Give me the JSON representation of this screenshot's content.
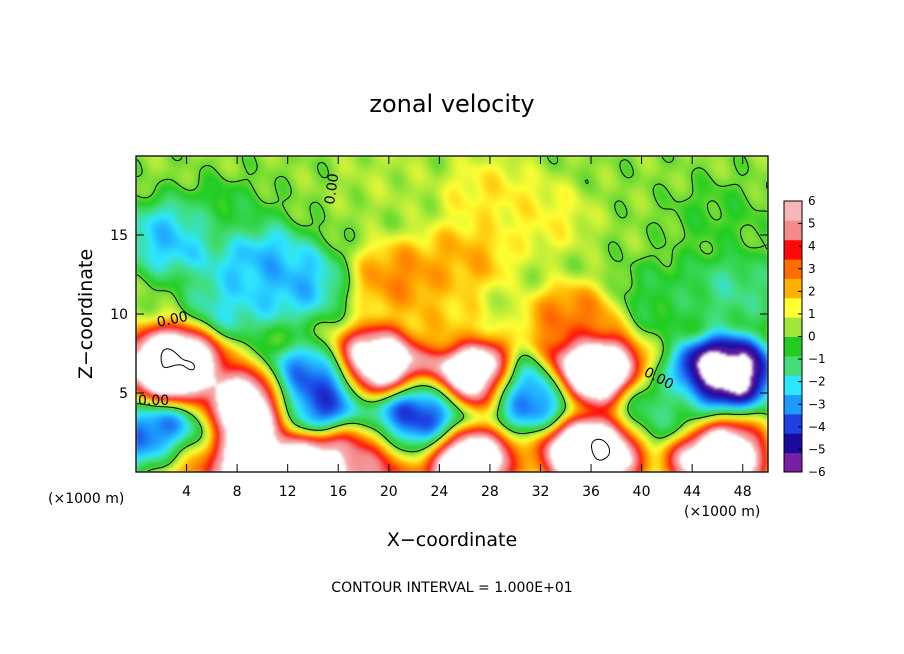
{
  "chart_data": {
    "type": "heatmap",
    "title": "zonal velocity",
    "xlabel": "X−coordinate",
    "ylabel": "Z−coordinate",
    "x_unit_left": "(×1000 m)",
    "x_unit_right": "(×1000 m)",
    "footer": "CONTOUR INTERVAL = 1.000E+01",
    "xlim": [
      0,
      50
    ],
    "ylim": [
      0,
      20
    ],
    "x_ticks": [
      4,
      8,
      12,
      16,
      20,
      24,
      28,
      32,
      36,
      40,
      44,
      48
    ],
    "x_tick_labels": [
      "4",
      "8",
      "12",
      "16",
      "20",
      "24",
      "28",
      "32",
      "36",
      "40",
      "44",
      "48"
    ],
    "y_ticks": [
      5,
      10,
      15
    ],
    "y_tick_labels": [
      "5",
      "10",
      "15"
    ],
    "colorbar": {
      "min": -6,
      "max": 6,
      "ticks": [
        6,
        5,
        4,
        3,
        2,
        1,
        0,
        -1,
        -2,
        -3,
        -4,
        -5,
        -6
      ],
      "tick_labels": [
        "6",
        "5",
        "4",
        "3",
        "2",
        "1",
        "0",
        "−1",
        "−2",
        "−3",
        "−4",
        "−5",
        "−6"
      ],
      "colors": [
        "#7b1fa2",
        "#1a0a9e",
        "#1f3fe0",
        "#1e9bff",
        "#2ee6ff",
        "#44dd77",
        "#22cc22",
        "#9ee63a",
        "#ffff33",
        "#ffb000",
        "#ff6d00",
        "#ff0a0a",
        "#f58a8a",
        "#f5b7b7"
      ]
    },
    "contour_labels": [
      "0.00",
      "0.00",
      "0.00",
      "0.00"
    ],
    "background_value": 0.3,
    "features": [
      {
        "x": 7,
        "z": 16,
        "value": -0.8
      },
      {
        "x": 20,
        "z": 18.5,
        "value": 0.7
      },
      {
        "x": 28,
        "z": 17.5,
        "value": 1.8
      },
      {
        "x": 32,
        "z": 16,
        "value": 1.6
      },
      {
        "x": 46,
        "z": 16,
        "value": -0.4
      },
      {
        "x": 3,
        "z": 14.8,
        "value": -3.2
      },
      {
        "x": 9.5,
        "z": 13.5,
        "value": -3.3
      },
      {
        "x": 12.5,
        "z": 12,
        "value": -3.3
      },
      {
        "x": 8,
        "z": 11,
        "value": -2.6
      },
      {
        "x": 21,
        "z": 12.2,
        "value": 3.2
      },
      {
        "x": 26,
        "z": 13.5,
        "value": 2.6
      },
      {
        "x": 24,
        "z": 9.5,
        "value": 2.2
      },
      {
        "x": 34.5,
        "z": 9.5,
        "value": 3.5
      },
      {
        "x": 42,
        "z": 11,
        "value": -0.9
      },
      {
        "x": 47,
        "z": 11.5,
        "value": -1.8
      },
      {
        "x": 3,
        "z": 6.8,
        "value": 10
      },
      {
        "x": 9.5,
        "z": 4.2,
        "value": 10
      },
      {
        "x": 19.5,
        "z": 6.8,
        "value": 9
      },
      {
        "x": 26.5,
        "z": 6,
        "value": 10
      },
      {
        "x": 36,
        "z": 6.5,
        "value": 10
      },
      {
        "x": 46.5,
        "z": 6.3,
        "value": -8
      },
      {
        "x": 13.5,
        "z": 5.5,
        "value": -4.5
      },
      {
        "x": 14,
        "z": 4.5,
        "value": -5
      },
      {
        "x": 23,
        "z": 4,
        "value": -4.8
      },
      {
        "x": 31,
        "z": 5,
        "value": -4.5
      },
      {
        "x": 21,
        "z": 2.5,
        "value": -5.5
      },
      {
        "x": 42,
        "z": 4,
        "value": -1.5
      },
      {
        "x": 36,
        "z": 1.2,
        "value": 10
      },
      {
        "x": 26,
        "z": 0.8,
        "value": 9
      },
      {
        "x": 9,
        "z": 0.5,
        "value": 9
      },
      {
        "x": 14,
        "z": 0.5,
        "value": 8
      },
      {
        "x": 19,
        "z": 1.2,
        "value": 7
      },
      {
        "x": 2,
        "z": 1.8,
        "value": -5
      },
      {
        "x": 4,
        "z": 0.3,
        "value": 4
      },
      {
        "x": 46,
        "z": 1,
        "value": 9
      }
    ]
  }
}
